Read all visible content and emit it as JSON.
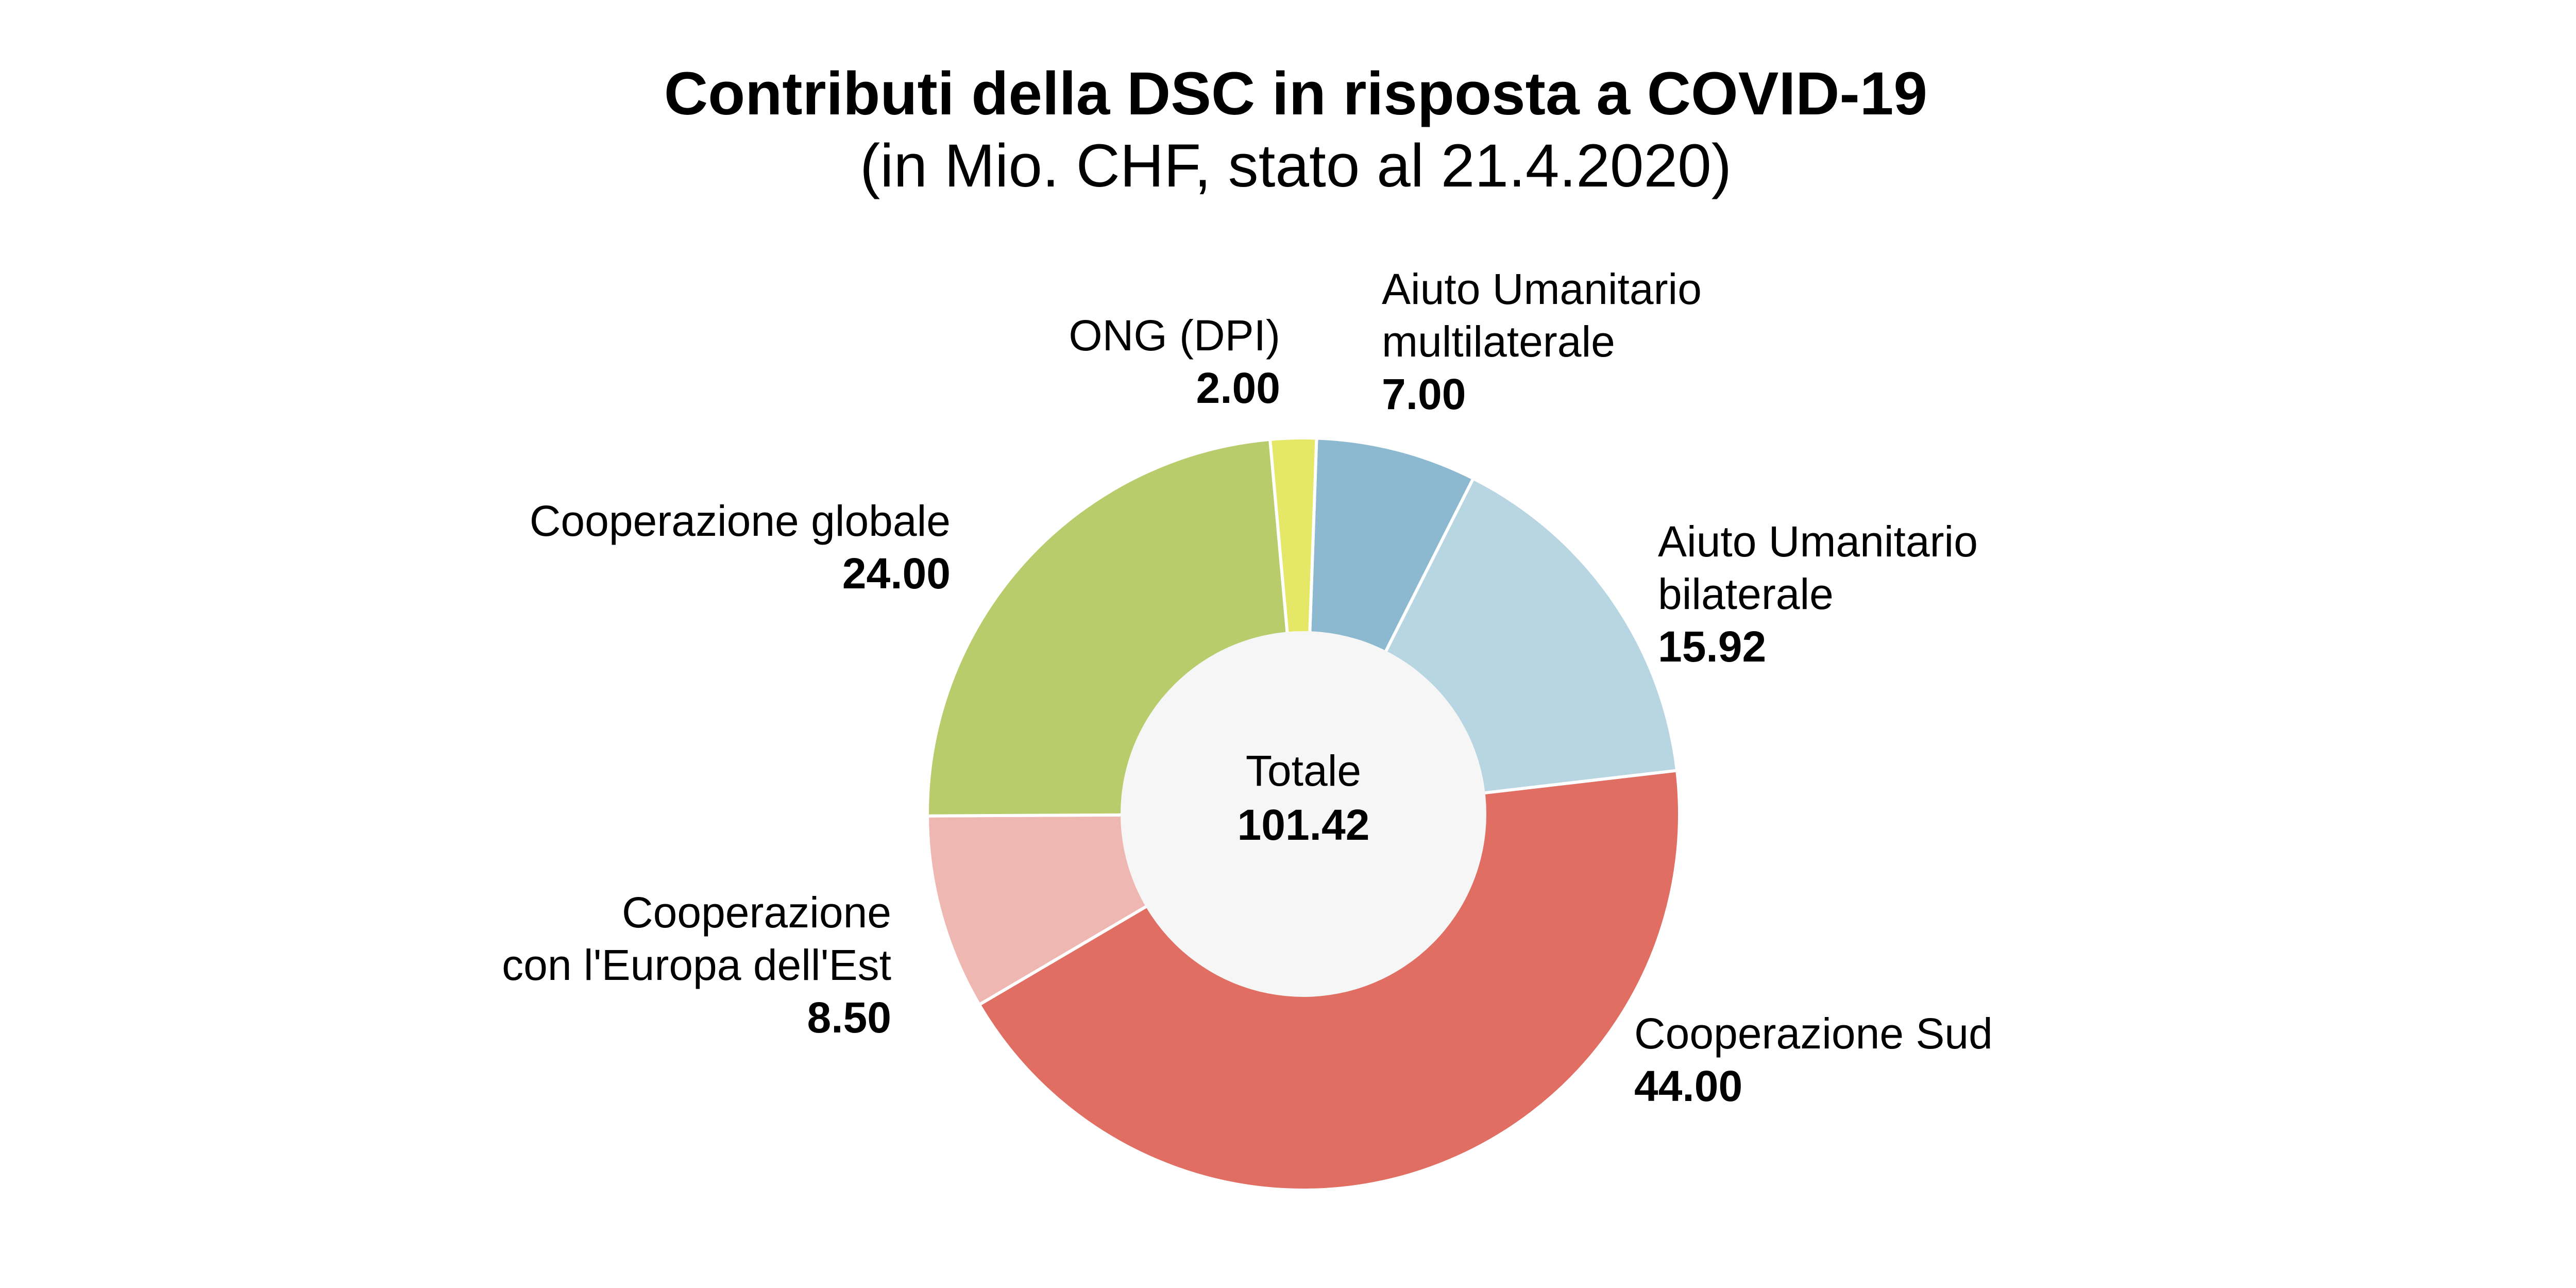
{
  "chart_data": {
    "type": "pie",
    "title": "Contributi della DSC in risposta a COVID-19",
    "subtitle": "(in Mio. CHF, stato al 21.4.2020)",
    "center": {
      "label": "Totale",
      "value": "101.42"
    },
    "slices": [
      {
        "label_lines": [
          "Aiuto Umanitario",
          "multilaterale"
        ],
        "value": 7.0,
        "value_text": "7.00",
        "color": "#8cb9cf"
      },
      {
        "label_lines": [
          "Aiuto Umanitario",
          "bilaterale"
        ],
        "value": 15.92,
        "value_text": "15.92",
        "color": "#b8d5e2"
      },
      {
        "label_lines": [
          "Cooperazione Sud"
        ],
        "value": 44.0,
        "value_text": "44.00",
        "color": "#e06e63"
      },
      {
        "label_lines": [
          "Cooperazione",
          "con l'Europa dell'Est"
        ],
        "value": 8.5,
        "value_text": "8.50",
        "color": "#efb7b1"
      },
      {
        "label_lines": [
          "Cooperazione globale"
        ],
        "value": 24.0,
        "value_text": "24.00",
        "color": "#b8cc6c"
      },
      {
        "label_lines": [
          "ONG (DPI)"
        ],
        "value": 2.0,
        "value_text": "2.00",
        "color": "#e5e766"
      }
    ],
    "hole_color": "#f6f6f6"
  }
}
